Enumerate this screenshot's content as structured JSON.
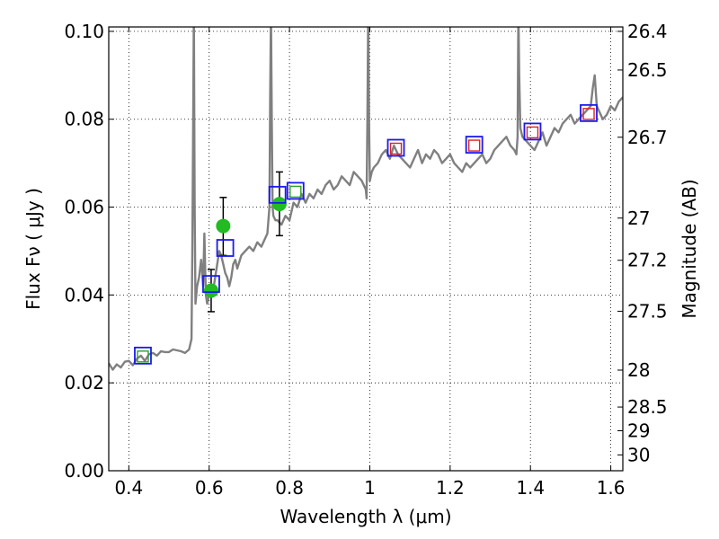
{
  "chart_data": {
    "type": "line",
    "xlabel": "Wavelength  λ (μm)",
    "ylabel": "Flux  Fν  ( μJy )",
    "y2label": "Magnitude (AB)",
    "xlim": [
      0.35,
      1.63
    ],
    "ylim": [
      0.0,
      0.101
    ],
    "grid": true,
    "x_ticks": [
      {
        "value": 0.4,
        "label": "0.4"
      },
      {
        "value": 0.6,
        "label": "0.6"
      },
      {
        "value": 0.8,
        "label": "0.8"
      },
      {
        "value": 1.0,
        "label": "1"
      },
      {
        "value": 1.2,
        "label": "1.2"
      },
      {
        "value": 1.4,
        "label": "1.4"
      },
      {
        "value": 1.6,
        "label": "1.6"
      }
    ],
    "y_ticks": [
      {
        "value": 0.0,
        "label": "0.00"
      },
      {
        "value": 0.02,
        "label": "0.02"
      },
      {
        "value": 0.04,
        "label": "0.04"
      },
      {
        "value": 0.06,
        "label": "0.06"
      },
      {
        "value": 0.08,
        "label": "0.08"
      },
      {
        "value": 0.1,
        "label": "0.10"
      }
    ],
    "y2_ticks": [
      {
        "mag": "26.4",
        "flux": 0.1
      },
      {
        "mag": "26.5",
        "flux": 0.0912
      },
      {
        "mag": "26.7",
        "flux": 0.0759
      },
      {
        "mag": "27",
        "flux": 0.0575
      },
      {
        "mag": "27.2",
        "flux": 0.0479
      },
      {
        "mag": "27.5",
        "flux": 0.0363
      },
      {
        "mag": "28",
        "flux": 0.0229
      },
      {
        "mag": "28.5",
        "flux": 0.0145
      },
      {
        "mag": "29",
        "flux": 0.0091
      },
      {
        "mag": "30",
        "flux": 0.0036
      }
    ],
    "series": [
      {
        "kind": "line",
        "color": "#808080",
        "x": [
          0.35,
          0.36,
          0.37,
          0.38,
          0.39,
          0.4,
          0.41,
          0.42,
          0.43,
          0.44,
          0.45,
          0.46,
          0.47,
          0.48,
          0.49,
          0.5,
          0.51,
          0.52,
          0.53,
          0.54,
          0.55,
          0.556,
          0.558,
          0.56,
          0.562,
          0.564,
          0.566,
          0.57,
          0.575,
          0.58,
          0.585,
          0.588,
          0.59,
          0.592,
          0.595,
          0.6,
          0.605,
          0.61,
          0.615,
          0.62,
          0.625,
          0.63,
          0.635,
          0.64,
          0.645,
          0.65,
          0.655,
          0.66,
          0.665,
          0.67,
          0.68,
          0.69,
          0.7,
          0.71,
          0.72,
          0.73,
          0.74,
          0.745,
          0.75,
          0.752,
          0.754,
          0.756,
          0.758,
          0.76,
          0.765,
          0.77,
          0.78,
          0.79,
          0.8,
          0.81,
          0.82,
          0.83,
          0.84,
          0.85,
          0.86,
          0.87,
          0.88,
          0.89,
          0.9,
          0.91,
          0.92,
          0.93,
          0.94,
          0.95,
          0.96,
          0.97,
          0.98,
          0.99,
          0.992,
          0.994,
          0.996,
          0.998,
          1.0,
          1.005,
          1.01,
          1.02,
          1.03,
          1.04,
          1.05,
          1.06,
          1.07,
          1.08,
          1.09,
          1.1,
          1.11,
          1.12,
          1.13,
          1.14,
          1.15,
          1.16,
          1.17,
          1.18,
          1.19,
          1.2,
          1.21,
          1.22,
          1.23,
          1.24,
          1.25,
          1.26,
          1.27,
          1.28,
          1.29,
          1.3,
          1.31,
          1.32,
          1.33,
          1.34,
          1.35,
          1.36,
          1.365,
          1.368,
          1.37,
          1.372,
          1.375,
          1.38,
          1.39,
          1.4,
          1.41,
          1.42,
          1.43,
          1.44,
          1.45,
          1.46,
          1.47,
          1.48,
          1.49,
          1.5,
          1.51,
          1.52,
          1.53,
          1.54,
          1.55,
          1.555,
          1.56,
          1.565,
          1.57,
          1.58,
          1.59,
          1.6,
          1.61,
          1.62,
          1.63
        ],
        "y": [
          0.0245,
          0.023,
          0.0242,
          0.0235,
          0.0248,
          0.025,
          0.024,
          0.0255,
          0.0262,
          0.025,
          0.0265,
          0.0268,
          0.0262,
          0.0272,
          0.027,
          0.027,
          0.0276,
          0.0274,
          0.0272,
          0.0268,
          0.0276,
          0.03,
          0.05,
          0.075,
          0.105,
          0.06,
          0.038,
          0.042,
          0.044,
          0.048,
          0.042,
          0.054,
          0.046,
          0.04,
          0.038,
          0.04,
          0.042,
          0.041,
          0.044,
          0.047,
          0.05,
          0.049,
          0.047,
          0.045,
          0.044,
          0.042,
          0.044,
          0.047,
          0.048,
          0.046,
          0.049,
          0.05,
          0.051,
          0.05,
          0.052,
          0.051,
          0.053,
          0.054,
          0.06,
          0.085,
          0.105,
          0.08,
          0.06,
          0.058,
          0.057,
          0.057,
          0.056,
          0.058,
          0.057,
          0.061,
          0.06,
          0.063,
          0.061,
          0.063,
          0.062,
          0.064,
          0.063,
          0.065,
          0.066,
          0.064,
          0.065,
          0.067,
          0.066,
          0.065,
          0.068,
          0.067,
          0.066,
          0.064,
          0.062,
          0.08,
          0.105,
          0.08,
          0.066,
          0.068,
          0.069,
          0.07,
          0.072,
          0.073,
          0.071,
          0.074,
          0.072,
          0.071,
          0.07,
          0.069,
          0.071,
          0.073,
          0.07,
          0.072,
          0.071,
          0.073,
          0.072,
          0.07,
          0.071,
          0.072,
          0.07,
          0.069,
          0.068,
          0.07,
          0.069,
          0.07,
          0.071,
          0.072,
          0.07,
          0.071,
          0.073,
          0.074,
          0.075,
          0.076,
          0.074,
          0.073,
          0.072,
          0.076,
          0.105,
          0.09,
          0.078,
          0.076,
          0.075,
          0.074,
          0.073,
          0.075,
          0.077,
          0.074,
          0.076,
          0.078,
          0.077,
          0.079,
          0.08,
          0.081,
          0.079,
          0.08,
          0.081,
          0.082,
          0.083,
          0.087,
          0.09,
          0.083,
          0.082,
          0.08,
          0.081,
          0.083,
          0.082,
          0.084,
          0.085
        ]
      },
      {
        "kind": "errorbars",
        "color": "#000000",
        "points": [
          {
            "x": 0.605,
            "y": 0.041,
            "lo": 0.0362,
            "hi": 0.0458
          },
          {
            "x": 0.635,
            "y": 0.0557,
            "lo": 0.049,
            "hi": 0.0622
          },
          {
            "x": 0.775,
            "y": 0.0607,
            "lo": 0.0535,
            "hi": 0.068
          }
        ]
      },
      {
        "kind": "markers",
        "marker": "circle",
        "color": "#22bb22",
        "points": [
          {
            "x": 0.605,
            "y": 0.041
          },
          {
            "x": 0.635,
            "y": 0.0557
          },
          {
            "x": 0.775,
            "y": 0.0607
          }
        ]
      },
      {
        "kind": "markers",
        "marker": "square-open",
        "color": "#2ca02c",
        "points": [
          {
            "x": 0.435,
            "y": 0.026
          },
          {
            "x": 0.815,
            "y": 0.0635
          }
        ]
      },
      {
        "kind": "markers",
        "marker": "square-open",
        "color": "#dd2222",
        "points": [
          {
            "x": 1.065,
            "y": 0.0733
          },
          {
            "x": 1.26,
            "y": 0.074
          },
          {
            "x": 1.405,
            "y": 0.077
          },
          {
            "x": 1.545,
            "y": 0.0812
          }
        ]
      },
      {
        "kind": "markers",
        "marker": "square-open-large",
        "color": "#1a1aee",
        "points": [
          {
            "x": 0.435,
            "y": 0.0262
          },
          {
            "x": 0.605,
            "y": 0.0425
          },
          {
            "x": 0.64,
            "y": 0.0507
          },
          {
            "x": 0.77,
            "y": 0.0628
          },
          {
            "x": 0.815,
            "y": 0.0637
          },
          {
            "x": 1.065,
            "y": 0.0735
          },
          {
            "x": 1.26,
            "y": 0.0742
          },
          {
            "x": 1.405,
            "y": 0.0772
          },
          {
            "x": 1.545,
            "y": 0.0814
          }
        ]
      }
    ]
  }
}
